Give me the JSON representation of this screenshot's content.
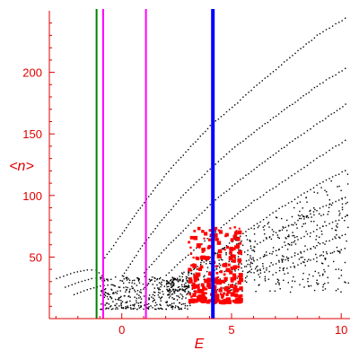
{
  "chart_data": {
    "type": "scatter",
    "title": "",
    "xlabel": "E",
    "ylabel": "<n>",
    "xlim": [
      -3.3,
      10.4
    ],
    "ylim": [
      0,
      250
    ],
    "xticks": [
      0,
      5,
      10
    ],
    "yticks": [
      50,
      100,
      150,
      200
    ],
    "grid": false,
    "legend": "none",
    "colors": {
      "axis": "#e00000",
      "points_black": "#000000",
      "points_red": "#ff0000",
      "line_green": "#008000",
      "line_magenta": "#ff00ff",
      "line_blue": "#0000ff"
    },
    "vertical_lines": [
      {
        "x": -1.15,
        "color": "#008000",
        "width": "thin"
      },
      {
        "x": -0.85,
        "color": "#ff00ff",
        "width": "thin"
      },
      {
        "x": 1.1,
        "color": "#ff00ff",
        "width": "thin"
      },
      {
        "x": 4.15,
        "color": "#0000ff",
        "width": "thick"
      }
    ],
    "series": [
      {
        "color": "#000000",
        "description_points": "dotted curves",
        "curves": [
          {
            "x": [
              -3.0,
              -2.2,
              -1.6,
              -1.2,
              -0.8
            ],
            "y": [
              33,
              38,
              40,
              40,
              33
            ]
          },
          {
            "x": [
              -2.6,
              -2.0,
              -1.4,
              -1.0,
              -0.5
            ],
            "y": [
              26,
              30,
              33,
              34,
              30
            ]
          },
          {
            "x": [
              -2.2,
              -1.6,
              -1.0,
              -0.5,
              0.0
            ],
            "y": [
              20,
              24,
              27,
              28,
              25
            ]
          },
          {
            "x": [
              -0.8,
              0.0,
              1.0,
              2.0,
              3.0,
              4.0,
              5.0,
              6.0,
              7.0,
              8.0,
              9.0,
              10.3
            ],
            "y": [
              50,
              70,
              95,
              118,
              138,
              157,
              172,
              188,
              203,
              218,
              232,
              246
            ]
          },
          {
            "x": [
              0.0,
              1.0,
              2.0,
              3.0,
              4.0,
              5.0,
              6.0,
              7.0,
              8.0,
              9.0,
              10.3
            ],
            "y": [
              35,
              62,
              85,
              105,
              122,
              138,
              152,
              165,
              178,
              191,
              205
            ]
          },
          {
            "x": [
              1.0,
              2.0,
              3.0,
              4.0,
              5.0,
              6.0,
              7.0,
              8.0,
              9.0,
              10.3
            ],
            "y": [
              38,
              58,
              76,
              93,
              108,
              122,
              135,
              148,
              160,
              176
            ]
          },
          {
            "x": [
              2.0,
              3.0,
              4.0,
              5.0,
              6.0,
              7.0,
              8.0,
              9.0,
              10.3
            ],
            "y": [
              36,
              52,
              67,
              82,
              96,
              108,
              120,
              132,
              147
            ]
          },
          {
            "x": [
              3.0,
              4.0,
              5.0,
              6.0,
              7.0,
              8.0,
              9.0,
              10.3
            ],
            "y": [
              38,
              50,
              63,
              76,
              88,
              99,
              110,
              122
            ]
          },
          {
            "x": [
              4.0,
              5.0,
              6.0,
              7.0,
              8.0,
              9.0,
              10.3
            ],
            "y": [
              38,
              48,
              59,
              70,
              80,
              90,
              100
            ]
          },
          {
            "x": [
              5.0,
              6.0,
              7.0,
              8.0,
              9.0,
              10.3
            ],
            "y": [
              38,
              47,
              56,
              65,
              74,
              84
            ]
          },
          {
            "x": [
              6.0,
              7.0,
              8.0,
              9.0,
              10.3
            ],
            "y": [
              38,
              45,
              53,
              61,
              70
            ]
          },
          {
            "x": [
              7.0,
              8.0,
              9.0,
              10.3
            ],
            "y": [
              38,
              44,
              51,
              58
            ]
          }
        ],
        "cloud": {
          "x_range": [
            -1.0,
            3.2
          ],
          "y_range": [
            8,
            35
          ]
        }
      },
      {
        "color": "#ff0000",
        "cluster": {
          "x_range": [
            3.0,
            5.4
          ],
          "y_range": [
            15,
            75
          ]
        }
      }
    ]
  }
}
